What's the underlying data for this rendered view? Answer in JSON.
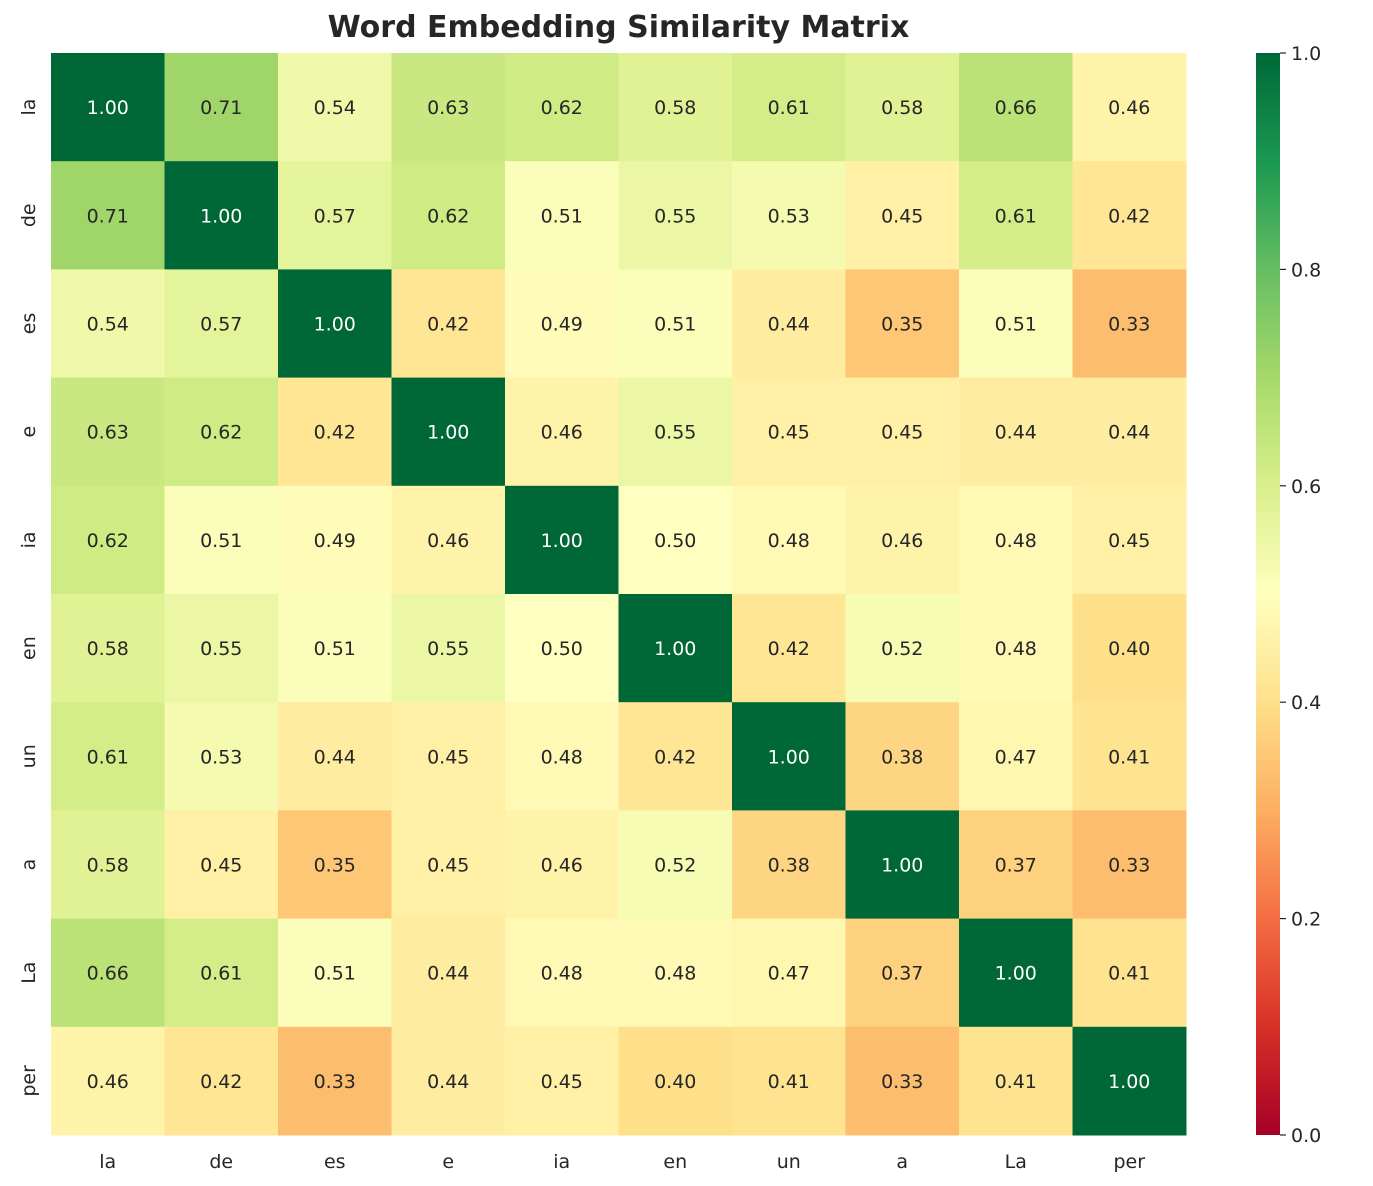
{
  "chart_data": {
    "type": "heatmap",
    "title": "Word Embedding Similarity Matrix",
    "x_labels": [
      "la",
      "de",
      "es",
      "e",
      "ia",
      "en",
      "un",
      "a",
      "La",
      "per"
    ],
    "y_labels": [
      "la",
      "de",
      "es",
      "e",
      "ia",
      "en",
      "un",
      "a",
      "La",
      "per"
    ],
    "values": [
      [
        1.0,
        0.71,
        0.54,
        0.63,
        0.62,
        0.58,
        0.61,
        0.58,
        0.66,
        0.46
      ],
      [
        0.71,
        1.0,
        0.57,
        0.62,
        0.51,
        0.55,
        0.53,
        0.45,
        0.61,
        0.42
      ],
      [
        0.54,
        0.57,
        1.0,
        0.42,
        0.49,
        0.51,
        0.44,
        0.35,
        0.51,
        0.33
      ],
      [
        0.63,
        0.62,
        0.42,
        1.0,
        0.46,
        0.55,
        0.45,
        0.45,
        0.44,
        0.44
      ],
      [
        0.62,
        0.51,
        0.49,
        0.46,
        1.0,
        0.5,
        0.48,
        0.46,
        0.48,
        0.45
      ],
      [
        0.58,
        0.55,
        0.51,
        0.55,
        0.5,
        1.0,
        0.42,
        0.52,
        0.48,
        0.4
      ],
      [
        0.61,
        0.53,
        0.44,
        0.45,
        0.48,
        0.42,
        1.0,
        0.38,
        0.47,
        0.41
      ],
      [
        0.58,
        0.45,
        0.35,
        0.45,
        0.46,
        0.52,
        0.38,
        1.0,
        0.37,
        0.33
      ],
      [
        0.66,
        0.61,
        0.51,
        0.44,
        0.48,
        0.48,
        0.47,
        0.37,
        1.0,
        0.41
      ],
      [
        0.46,
        0.42,
        0.33,
        0.44,
        0.45,
        0.4,
        0.41,
        0.33,
        0.41,
        1.0
      ]
    ],
    "colormap": "RdYlGn",
    "vmin": 0.0,
    "vmax": 1.0,
    "colorbar_ticks": [
      "0.0",
      "0.2",
      "0.4",
      "0.6",
      "0.8",
      "1.0"
    ],
    "annotation_format": "0.00"
  }
}
